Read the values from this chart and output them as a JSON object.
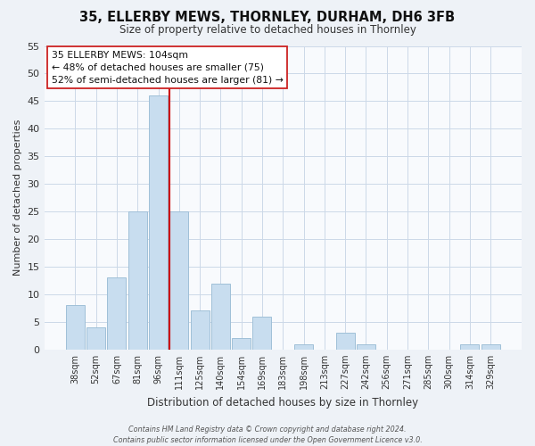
{
  "title": "35, ELLERBY MEWS, THORNLEY, DURHAM, DH6 3FB",
  "subtitle": "Size of property relative to detached houses in Thornley",
  "xlabel": "Distribution of detached houses by size in Thornley",
  "ylabel": "Number of detached properties",
  "bar_color": "#c8ddef",
  "bar_edge_color": "#a0c0d8",
  "categories": [
    "38sqm",
    "52sqm",
    "67sqm",
    "81sqm",
    "96sqm",
    "111sqm",
    "125sqm",
    "140sqm",
    "154sqm",
    "169sqm",
    "183sqm",
    "198sqm",
    "213sqm",
    "227sqm",
    "242sqm",
    "256sqm",
    "271sqm",
    "285sqm",
    "300sqm",
    "314sqm",
    "329sqm"
  ],
  "values": [
    8,
    4,
    13,
    25,
    46,
    25,
    7,
    12,
    2,
    6,
    0,
    1,
    0,
    3,
    1,
    0,
    0,
    0,
    0,
    1,
    1
  ],
  "ylim": [
    0,
    55
  ],
  "yticks": [
    0,
    5,
    10,
    15,
    20,
    25,
    30,
    35,
    40,
    45,
    50,
    55
  ],
  "vline_x_index": 5.0,
  "vline_color": "#cc0000",
  "ann_line1": "35 ELLERBY MEWS: 104sqm",
  "ann_line2": "← 48% of detached houses are smaller (75)",
  "ann_line3": "52% of semi-detached houses are larger (81) →",
  "footnote": "Contains HM Land Registry data © Crown copyright and database right 2024.\nContains public sector information licensed under the Open Government Licence v3.0.",
  "bg_color": "#eef2f7",
  "plot_bg_color": "#f8fafd",
  "grid_color": "#ccd8e8",
  "title_color": "#111111",
  "subtitle_color": "#333333",
  "ylabel_color": "#333333",
  "xlabel_color": "#333333",
  "tick_color": "#333333"
}
